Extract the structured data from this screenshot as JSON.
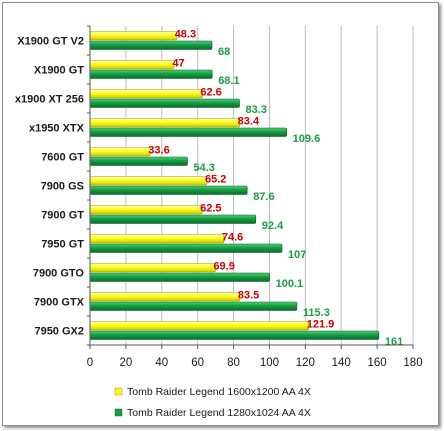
{
  "chart_data": {
    "type": "bar",
    "orientation": "horizontal",
    "categories": [
      "X1900 GT V2",
      "X1900 GT",
      "x1900 XT 256",
      "x1950 XTX",
      "7600 GT",
      "7900 GS",
      "7900 GT",
      "7950 GT",
      "7900 GTO",
      "7900 GTX",
      "7950 GX2"
    ],
    "series": [
      {
        "name": "Tomb Raider Legend 1600x1200 AA 4X",
        "color": "#ffff00",
        "label_color": "#cc0000",
        "values": [
          48.3,
          47,
          62.6,
          83.4,
          33.6,
          65.2,
          62.5,
          74.6,
          69.9,
          83.5,
          121.9
        ],
        "labels": [
          "48.3",
          "47",
          "62.6",
          "83.4",
          "33.6",
          "65.2",
          "62.5",
          "74.6",
          "69.9",
          "83.5",
          "121.9"
        ]
      },
      {
        "name": "Tomb Raider Legend 1280x1024 AA 4X",
        "color": "#139b3f",
        "label_color": "#1a9e3c",
        "values": [
          68,
          68.1,
          83.3,
          109.6,
          54.3,
          87.6,
          92.4,
          107,
          100.1,
          115.3,
          161
        ],
        "labels": [
          "68",
          "68.1",
          "83.3",
          "109.6",
          "54.3",
          "87.6",
          "92.4",
          "107",
          "100.1",
          "115.3",
          "161"
        ]
      }
    ],
    "xlim": [
      0,
      180
    ],
    "x_ticks": [
      "0",
      "20",
      "40",
      "60",
      "80",
      "100",
      "120",
      "140",
      "160",
      "180"
    ],
    "grid": true,
    "legend_position": "bottom"
  }
}
